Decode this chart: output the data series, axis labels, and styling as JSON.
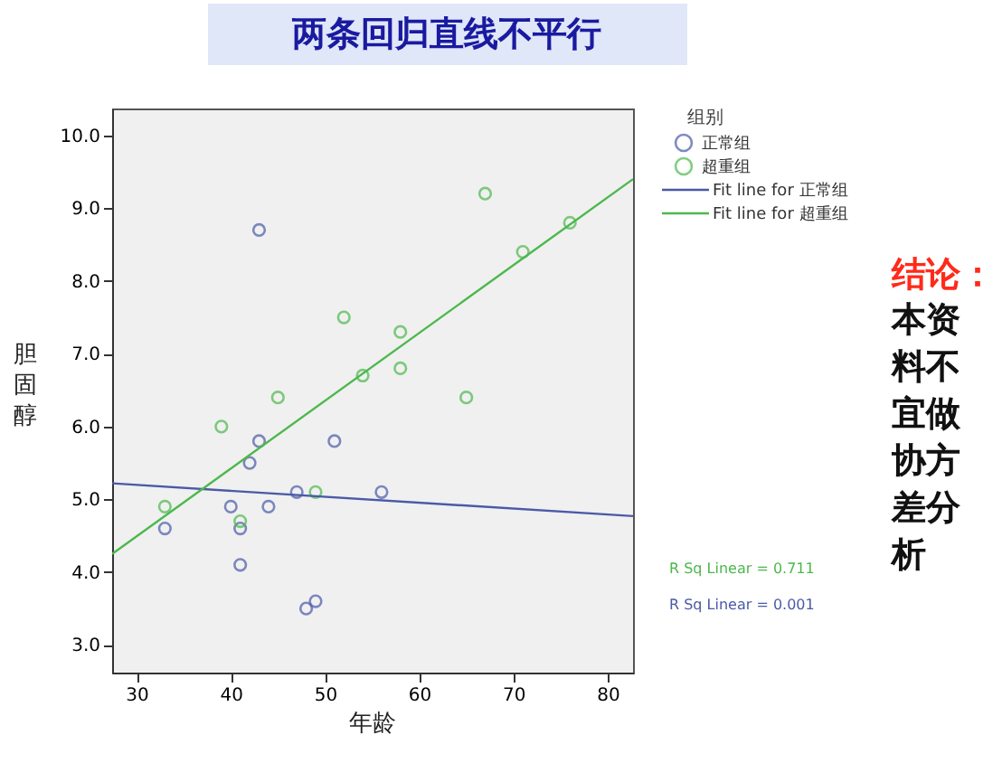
{
  "chart_data": {
    "type": "scatter",
    "title": "两条回归直线不平行",
    "xlabel": "年龄",
    "ylabel": "胆固醇",
    "legend_title": "组别",
    "legend": "top right",
    "grid": false,
    "xlim": [
      27.4,
      82.7
    ],
    "xticks": [
      30,
      40,
      50,
      60,
      70,
      80
    ],
    "ylim": [
      2.62,
      10.37
    ],
    "yticks": [
      {
        "value": 3,
        "label": "3.0"
      },
      {
        "value": 4,
        "label": "4.0"
      },
      {
        "value": 5,
        "label": "5.0"
      },
      {
        "value": 6,
        "label": "6.0"
      },
      {
        "value": 7,
        "label": "7.0"
      },
      {
        "value": 8,
        "label": "8.0"
      },
      {
        "value": 9,
        "label": "9.0"
      },
      {
        "value": 10,
        "label": "10.0"
      }
    ],
    "series": [
      {
        "name": "正常组",
        "marker": "circle",
        "color": "#4a5aa8",
        "x": [
          43,
          43,
          51,
          42,
          47,
          56,
          40,
          44,
          33,
          41,
          41,
          48,
          49
        ],
        "values": [
          8.7,
          5.8,
          5.8,
          5.5,
          5.1,
          5.1,
          4.9,
          4.9,
          4.6,
          4.6,
          4.1,
          3.5,
          3.6
        ]
      },
      {
        "name": "超重组",
        "marker": "circle",
        "color": "#4cb84c",
        "x": [
          67,
          76,
          71,
          52,
          58,
          54,
          58,
          45,
          65,
          39,
          33,
          49,
          41
        ],
        "values": [
          9.2,
          8.8,
          8.4,
          7.5,
          7.3,
          6.7,
          6.8,
          6.4,
          6.4,
          6.0,
          4.9,
          5.1,
          4.7
        ]
      },
      {
        "name": "Fit line for 正常组",
        "type": "line",
        "line_style": "solid",
        "color": "#4a5aa8",
        "x": [
          27.4,
          82.7
        ],
        "values": [
          5.22,
          4.77
        ]
      },
      {
        "name": "Fit line for 超重组",
        "type": "line",
        "line_style": "solid",
        "color": "#4cb84c",
        "x": [
          27.4,
          82.7
        ],
        "values": [
          4.25,
          9.4
        ]
      }
    ],
    "annotations": [
      "R Sq Linear = 0.711",
      "R Sq Linear = 0.001",
      "结论：",
      "本资料不宜做协方差分析"
    ]
  }
}
